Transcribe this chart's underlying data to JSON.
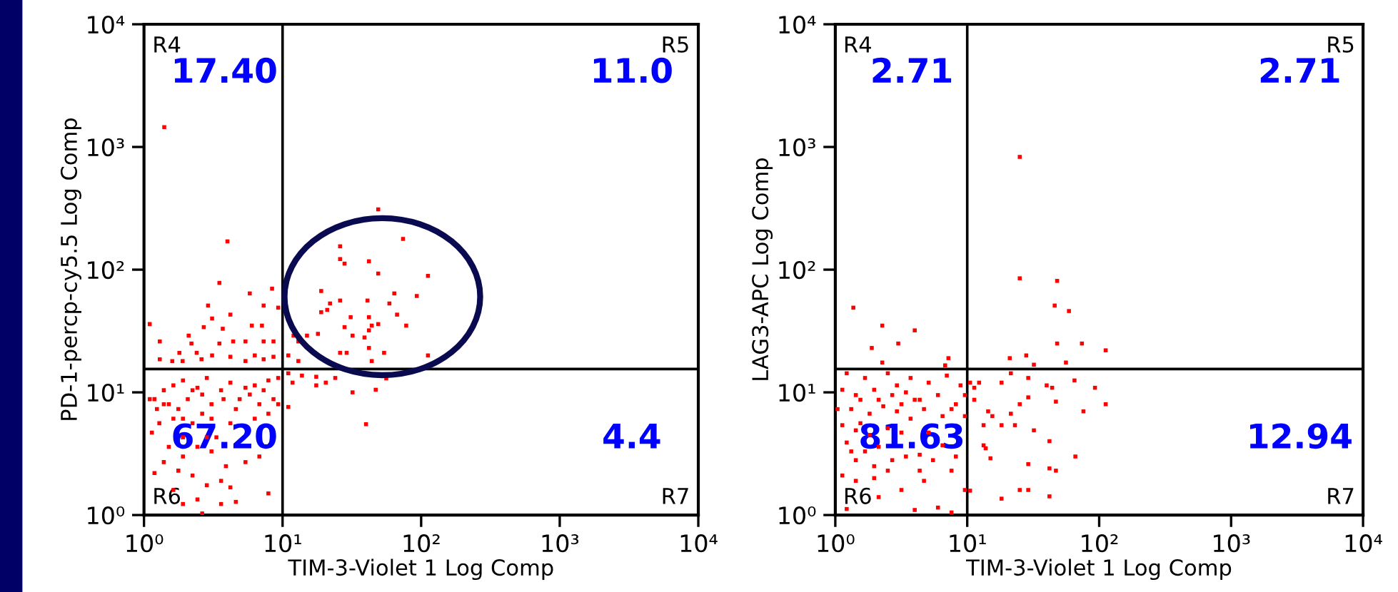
{
  "chart_data": [
    {
      "type": "scatter",
      "xlabel": "TIM-3-Violet 1 Log Comp",
      "ylabel": "PD-1-percp-cy5.5 Log Comp",
      "log": "xy",
      "grid": false,
      "legend": false,
      "marker": "square",
      "xlim": [
        1,
        10000
      ],
      "ylim": [
        1,
        10000
      ],
      "xticks": [
        {
          "value": 1,
          "label": "10⁰"
        },
        {
          "value": 10,
          "label": "10¹"
        },
        {
          "value": 100,
          "label": "10²"
        },
        {
          "value": 1000,
          "label": "10³"
        },
        {
          "value": 10000,
          "label": "10⁴"
        }
      ],
      "yticks": [
        {
          "value": 1,
          "label": "10⁰"
        },
        {
          "value": 10,
          "label": "10¹"
        },
        {
          "value": 100,
          "label": "10²"
        },
        {
          "value": 1000,
          "label": "10³"
        },
        {
          "value": 10000,
          "label": "10⁴"
        }
      ],
      "ref_lines": [
        {
          "axis": "x",
          "value": 10,
          "color": "#000000"
        },
        {
          "axis": "y",
          "value": 15.5,
          "color": "#000000"
        }
      ],
      "annotations": [
        "R4",
        "R5",
        "R6",
        "R7",
        "17.40",
        "11.0",
        "67.20",
        "4.4"
      ],
      "series": [
        {
          "color": "#ff0000",
          "x": [
            49,
            74,
            26,
            4.0,
            3.5,
            26,
            28,
            42,
            49,
            112,
            19,
            64,
            93,
            26,
            22,
            41,
            59,
            19,
            21,
            31,
            42,
            67,
            78,
            49,
            44,
            28,
            42,
            32,
            39,
            18,
            15,
            12,
            13,
            42,
            54,
            112,
            29,
            26,
            44,
            56,
            32,
            47,
            40,
            11,
            13,
            11,
            1.1,
            2.9,
            5.8,
            8.4,
            9.3,
            7.3,
            4.2,
            3.1,
            6.0,
            7.1,
            2.7,
            3.7,
            2.1,
            5.4,
            7.3,
            4.4,
            8.6,
            3.5,
            2.2,
            1.3,
            1.8,
            2.4,
            3.1,
            4.2,
            6.3,
            7.3,
            1.3,
            1.6,
            1.9,
            2.6,
            5.4,
            8.6,
            1.4,
            11,
            13.8,
            17.5,
            20.5,
            24,
            17.5,
            11.8,
            9.3,
            7.9,
            6.3,
            5.4,
            4.2,
            3.6,
            2.84,
            2.43,
            1.91,
            1.63,
            1.39,
            1.19,
            1.51,
            1.77,
            2.07,
            2.63,
            3.07,
            3.75,
            4.6,
            5.8,
            6.8,
            7.9,
            8.6,
            6.3,
            4.2,
            3.07,
            2.24,
            1.63,
            1.29,
            1.14,
            1.51,
            1.91,
            2.43,
            3.07,
            1.39,
            1.77,
            2.24,
            2.84,
            3.6,
            1.19,
            1.63,
            4.2,
            2.43,
            1.91,
            3.6,
            2.63,
            4.6,
            7.9,
            1.1,
            1.24,
            1.91,
            3.33,
            3.9,
            5.4,
            6.8,
            7.3,
            4.9,
            2.63,
            2.24,
            1.39,
            1.91,
            2.84,
            9.3
          ],
          "values": [
            310,
            178,
            155,
            170,
            78,
            122,
            112,
            117,
            93,
            89,
            67,
            64,
            61,
            56,
            53,
            56,
            53,
            45,
            47,
            41,
            41,
            43,
            35,
            36,
            35,
            34,
            32,
            29,
            28,
            30,
            29,
            29,
            26,
            23,
            21,
            20,
            21,
            21,
            18,
            13,
            10,
            10.5,
            5.5,
            7.6,
            18,
            20,
            36,
            51,
            64,
            70,
            49,
            51,
            43,
            40,
            35,
            35,
            34,
            33,
            29,
            26,
            26,
            26,
            26,
            25,
            25,
            26,
            21,
            21,
            20,
            19.5,
            20,
            18.6,
            18.6,
            18,
            18,
            18.6,
            18,
            19.5,
            1450,
            14.3,
            13.7,
            13.4,
            12.0,
            13.1,
            11.4,
            12.0,
            13.1,
            12.5,
            11.4,
            10.9,
            12.0,
            10.4,
            13.1,
            10.9,
            12.5,
            11.4,
            10.4,
            8.8,
            8.0,
            7.3,
            8.8,
            9.6,
            8.0,
            8.8,
            7.3,
            9.6,
            8.0,
            6.7,
            8.8,
            6.1,
            5.6,
            6.1,
            5.6,
            6.1,
            5.6,
            4.7,
            3.6,
            3.0,
            3.6,
            3.3,
            2.7,
            2.3,
            2.1,
            1.75,
            1.9,
            2.2,
            1.6,
            1.68,
            1.34,
            1.23,
            1.23,
            1.03,
            1.28,
            1.5,
            8.8,
            7.3,
            4.3,
            4.3,
            2.5,
            2.7,
            3.0,
            10.4,
            8.8,
            6.7,
            10.4,
            8.0,
            6.1,
            4.3,
            8.0
          ]
        }
      ]
    },
    {
      "type": "scatter",
      "xlabel": "TIM-3-Violet 1 Log Comp",
      "ylabel": "LAG3-APC Log Comp",
      "log": "xy",
      "grid": false,
      "legend": false,
      "marker": "square",
      "xlim": [
        1,
        10000
      ],
      "ylim": [
        1,
        10000
      ],
      "xticks": [
        {
          "value": 1,
          "label": "10⁰"
        },
        {
          "value": 10,
          "label": "10¹"
        },
        {
          "value": 100,
          "label": "10²"
        },
        {
          "value": 1000,
          "label": "10³"
        },
        {
          "value": 10000,
          "label": "10⁴"
        }
      ],
      "yticks": [
        {
          "value": 1,
          "label": "10⁰"
        },
        {
          "value": 10,
          "label": "10¹"
        },
        {
          "value": 100,
          "label": "10²"
        },
        {
          "value": 1000,
          "label": "10³"
        },
        {
          "value": 10000,
          "label": "10⁴"
        }
      ],
      "ref_lines": [
        {
          "axis": "x",
          "value": 10,
          "color": "#000000"
        },
        {
          "axis": "y",
          "value": 15.5,
          "color": "#000000"
        }
      ],
      "annotations": [
        "R4",
        "R5",
        "R6",
        "R7",
        "2.71",
        "2.71",
        "81.63",
        "12.94"
      ],
      "series": [
        {
          "color": "#ff0000",
          "x": [
            25,
            25,
            48,
            46,
            59,
            1.37,
            2.27,
            4.0,
            3.0,
            1.89,
            48,
            74,
            112,
            28,
            21,
            32,
            56,
            2.27,
            7.2,
            6.8,
            10.5,
            11.3,
            12.3,
            18.2,
            21.4,
            29,
            40,
            44,
            65,
            93,
            112,
            76,
            47,
            29,
            25,
            21.4,
            14.4,
            15.5,
            13.3,
            18.2,
            23,
            32,
            42,
            13.3,
            13.8,
            29,
            42,
            66,
            47,
            25,
            29,
            42,
            18.2,
            10.5,
            15,
            11.3,
            1.22,
            1.68,
            2.5,
            3.72,
            5.1,
            7.0,
            8.9,
            1.13,
            1.43,
            1.97,
            2.7,
            3.43,
            4.36,
            6.0,
            8.2,
            9.6,
            1.04,
            1.32,
            1.82,
            2.31,
            2.93,
            3.72,
            4.7,
            6.5,
            7.6,
            9.6,
            1.13,
            1.43,
            1.82,
            1.55,
            1.22,
            1.32,
            1.68,
            2.13,
            2.7,
            3.43,
            4.36,
            5.5,
            7.6,
            1.13,
            1.43,
            1.97,
            2.5,
            3.17,
            4.7,
            2.13,
            1.22,
            4.0,
            6.0,
            7.6,
            9.6,
            3.17,
            4.0,
            2.13,
            2.5,
            3.17,
            5.1,
            6.5,
            8.2,
            1.43,
            1.97,
            4.36,
            2.93,
            1.55
          ],
          "values": [
            830,
            85,
            81,
            51,
            46,
            49,
            35,
            32,
            25,
            23,
            25,
            25,
            22,
            20,
            19,
            16.8,
            17.5,
            17.5,
            19,
            16.6,
            12.0,
            10.9,
            12.0,
            12.0,
            14.3,
            13.1,
            11.4,
            10.9,
            12.5,
            10.9,
            8.0,
            7.0,
            8.4,
            9.1,
            8.0,
            6.7,
            7.0,
            6.4,
            5.4,
            5.4,
            5.4,
            4.9,
            4.0,
            3.7,
            3.5,
            2.6,
            2.4,
            3.0,
            2.3,
            1.6,
            1.6,
            1.42,
            1.36,
            1.58,
            2.9,
            8.7,
            14.3,
            13.1,
            14.3,
            13.1,
            12.0,
            13.7,
            11.4,
            10.5,
            9.5,
            10.5,
            9.5,
            10,
            8.7,
            9.5,
            8.0,
            9.5,
            7.3,
            7.3,
            6.7,
            7.7,
            7.0,
            6.1,
            7.3,
            6.4,
            7.3,
            6.4,
            5.4,
            4.9,
            4.5,
            5.6,
            3.9,
            3.3,
            3.3,
            3.6,
            2.8,
            3.0,
            3.1,
            2.8,
            2.3,
            2.1,
            1.9,
            2.0,
            2.3,
            1.6,
            1.9,
            1.4,
            1.12,
            1.1,
            1.15,
            1.05,
            1.6,
            8.0,
            8.7,
            8.7,
            5.1,
            4.7,
            4.7,
            3.7,
            3.0,
            2.8,
            2.5,
            2.3,
            11.4,
            8.7
          ]
        }
      ]
    }
  ]
}
